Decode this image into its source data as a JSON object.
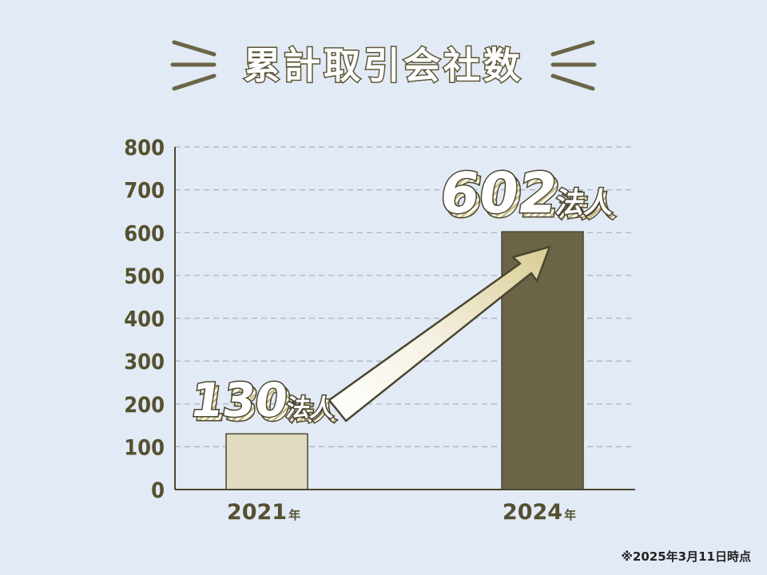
{
  "title": "累計取引会社数",
  "note": "※2025年3月11日時点",
  "colors": {
    "background": "#e2eaf5",
    "bar_2021": "#e1dbbf",
    "bar_2024": "#6b6548",
    "text": "#55502f",
    "grid": "#a9b1c4"
  },
  "chart_data": {
    "type": "bar",
    "categories": [
      "2021",
      "2024"
    ],
    "category_unit": "年",
    "values": [
      130,
      602
    ],
    "ylim": [
      0,
      800
    ],
    "yticks": [
      "0",
      "100",
      "200",
      "300",
      "400",
      "500",
      "600",
      "700",
      "800"
    ],
    "grid": true,
    "data_labels": [
      {
        "number": "130",
        "unit": "法人"
      },
      {
        "number": "602",
        "unit": "法人"
      }
    ],
    "annotation": "arrow from 2021 to 2024"
  }
}
